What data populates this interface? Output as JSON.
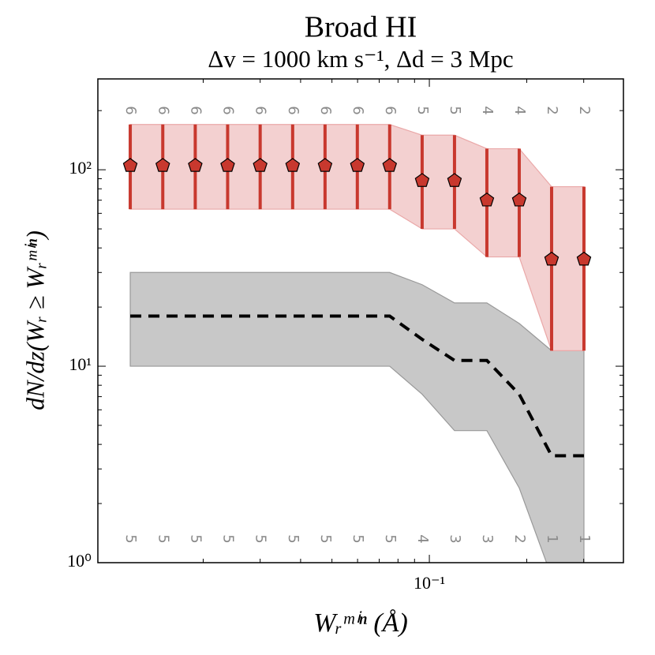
{
  "chart_data": {
    "type": "errorband",
    "title": "Broad HI",
    "subtitle": "Δv = 1000 km s⁻¹, Δd = 3 Mpc",
    "x_label": "Wᵣᵐⁱⁿ (Å)",
    "y_label": "dN/dz(Wᵣ ≥ Wᵣᵐⁱⁿ)",
    "x": [
      0.0119,
      0.015,
      0.0189,
      0.0238,
      0.03,
      0.0378,
      0.0476,
      0.0599,
      0.0754,
      0.095,
      0.1196,
      0.1506,
      0.1896,
      0.2387,
      0.3005
    ],
    "series": [
      {
        "color": "#c8382e",
        "band_color": "#f3d0d0",
        "values": [
          105,
          105,
          105,
          105,
          105,
          105,
          105,
          105,
          105,
          88,
          88,
          70,
          70,
          35,
          35
        ],
        "lower": [
          63,
          63,
          63,
          63,
          63,
          63,
          63,
          63,
          63,
          50,
          50,
          36,
          36,
          12,
          12
        ],
        "upper": [
          170,
          170,
          170,
          170,
          170,
          170,
          170,
          170,
          170,
          150,
          150,
          128,
          128,
          82,
          82
        ],
        "counts": [
          6,
          6,
          6,
          6,
          6,
          6,
          6,
          6,
          6,
          5,
          5,
          4,
          4,
          2,
          2
        ]
      },
      {
        "color": "#000000",
        "band_color": "#c8c8c8",
        "values": [
          18,
          18,
          18,
          18,
          18,
          18,
          18,
          18,
          18,
          13.7,
          10.7,
          10.7,
          7.2,
          3.5,
          3.5
        ],
        "lower": [
          10,
          10,
          10,
          10,
          10,
          10,
          10,
          10,
          10,
          7.2,
          4.7,
          4.7,
          2.4,
          0.85,
          0.85
        ],
        "upper": [
          30,
          30,
          30,
          30,
          30,
          30,
          30,
          30,
          30,
          26,
          21,
          21,
          16.5,
          12,
          12
        ],
        "counts": [
          5,
          5,
          5,
          5,
          5,
          5,
          5,
          5,
          5,
          4,
          3,
          3,
          2,
          1,
          1
        ]
      }
    ],
    "xlim": [
      0.00945,
      0.398
    ],
    "ylim": [
      1,
      290
    ],
    "xticks": [
      {
        "value": 0.1,
        "label": "10⁻¹"
      }
    ],
    "yticks": [
      {
        "value": 1,
        "label": "10⁰"
      },
      {
        "value": 10,
        "label": "10¹"
      },
      {
        "value": 100,
        "label": "10²"
      }
    ],
    "log_x": true,
    "log_y": true,
    "grid": false
  }
}
